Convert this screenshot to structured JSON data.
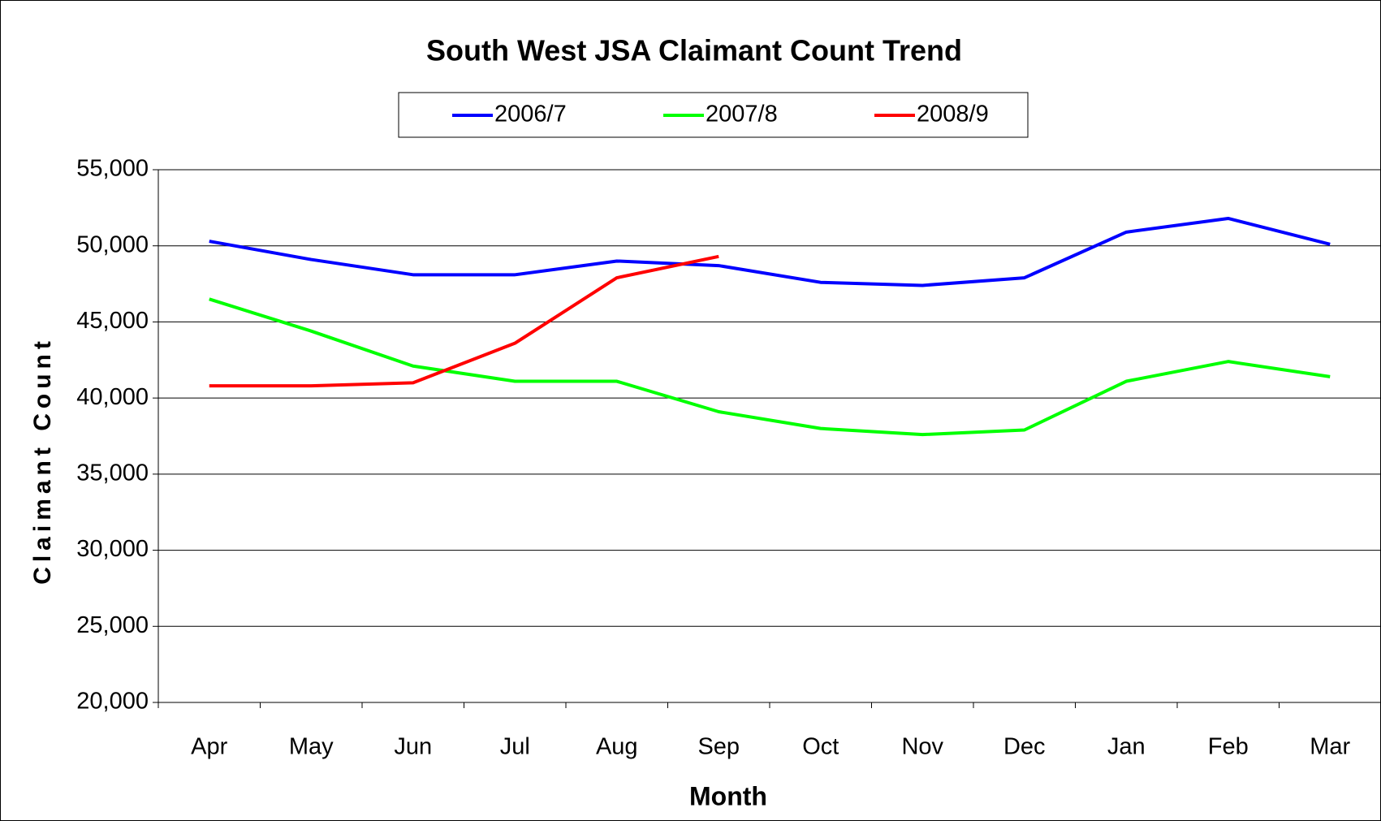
{
  "chart_data": {
    "type": "line",
    "title": "South West JSA Claimant Count Trend",
    "x_label": "Month",
    "y_label": "Claimant Count",
    "categories": [
      "Apr",
      "May",
      "Jun",
      "Jul",
      "Aug",
      "Sep",
      "Oct",
      "Nov",
      "Dec",
      "Jan",
      "Feb",
      "Mar"
    ],
    "series": [
      {
        "name": "2006/7",
        "color": "#0000ff",
        "values": [
          50300,
          49100,
          48100,
          48100,
          49000,
          48700,
          47600,
          47400,
          47900,
          50900,
          51800,
          50100
        ]
      },
      {
        "name": "2007/8",
        "color": "#00ff00",
        "values": [
          46500,
          44400,
          42100,
          41100,
          41100,
          39100,
          38000,
          37600,
          37900,
          41100,
          42400,
          41400
        ]
      },
      {
        "name": "2008/9",
        "color": "#ff0000",
        "values": [
          40800,
          40800,
          41000,
          43600,
          47900,
          49300,
          null,
          null,
          null,
          null,
          null,
          null
        ]
      }
    ],
    "ylim": [
      20000,
      55000
    ],
    "yticks": [
      {
        "value": 20000,
        "label": "20,000"
      },
      {
        "value": 25000,
        "label": "25,000"
      },
      {
        "value": 30000,
        "label": "30,000"
      },
      {
        "value": 35000,
        "label": "35,000"
      },
      {
        "value": 40000,
        "label": "40,000"
      },
      {
        "value": 45000,
        "label": "45,000"
      },
      {
        "value": 50000,
        "label": "50,000"
      },
      {
        "value": 55000,
        "label": "55,000"
      }
    ],
    "grid": true,
    "legend": "top"
  }
}
